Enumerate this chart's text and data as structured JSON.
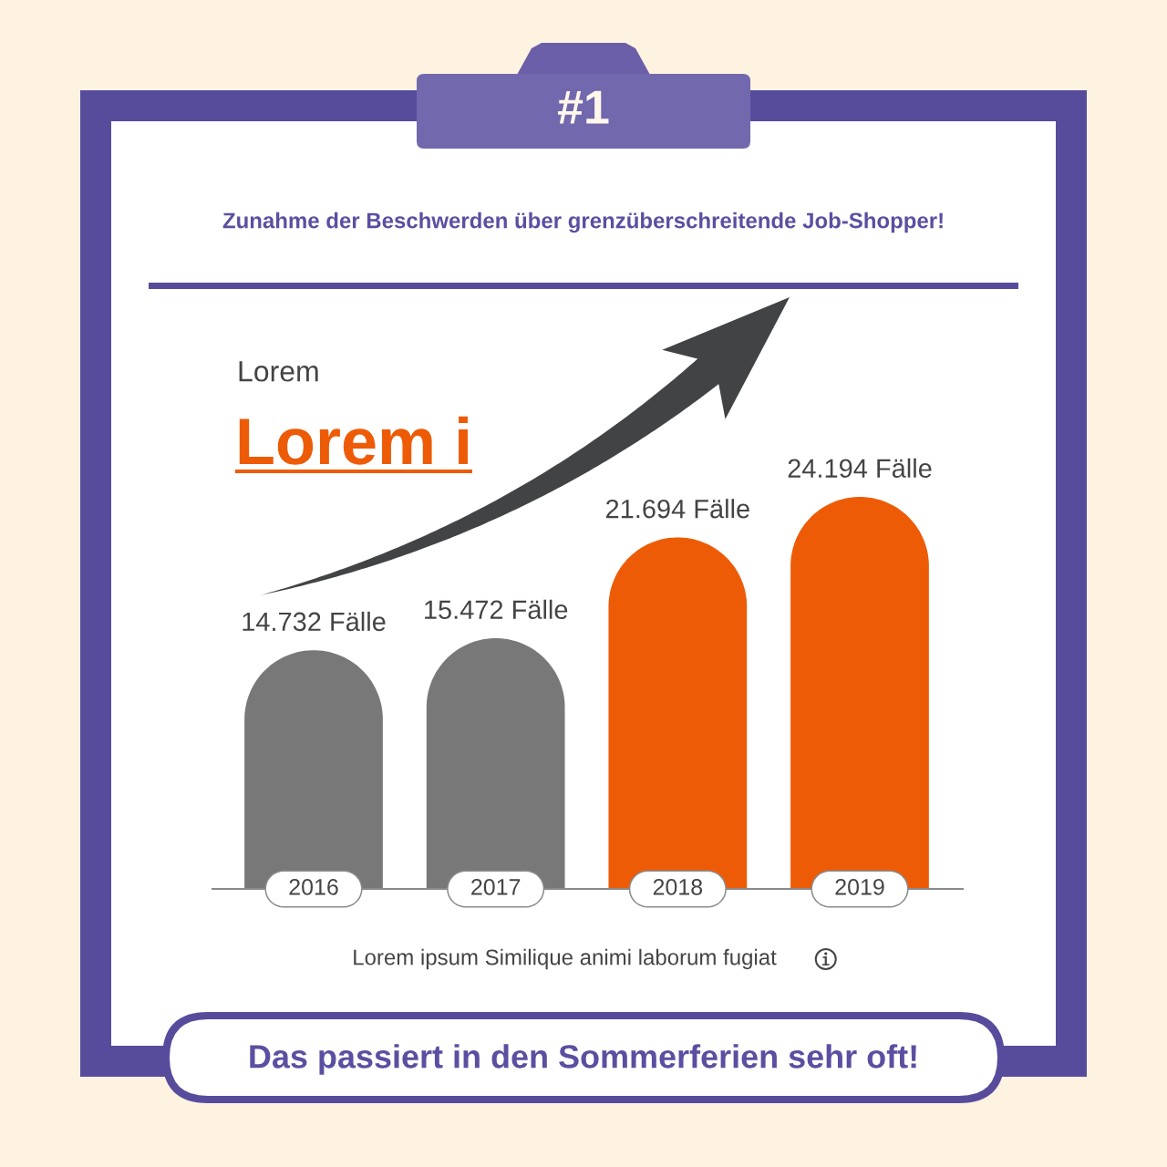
{
  "chart_data": {
    "type": "bar",
    "title": "Zunahme der Beschwerden über grenzüberschreitende Job-Shopper!",
    "categories": [
      "2016",
      "2017",
      "2018",
      "2019"
    ],
    "values": [
      14732,
      15472,
      21694,
      24194
    ],
    "value_labels": [
      "14.732 Fälle",
      "15.472 Fälle",
      "21.694 Fälle",
      "24.194 Fälle"
    ],
    "colors": [
      "#777877",
      "#777877",
      "#ee5b06",
      "#ee5b06"
    ],
    "annotations": [
      "#1",
      "Lorem",
      "Lorem i",
      "Lorem ipsum Similique animi laborum fugiat",
      "Das passiert in den Sommerferien sehr oft!"
    ],
    "tick_labels": "x",
    "grid": false,
    "legend": false
  }
}
